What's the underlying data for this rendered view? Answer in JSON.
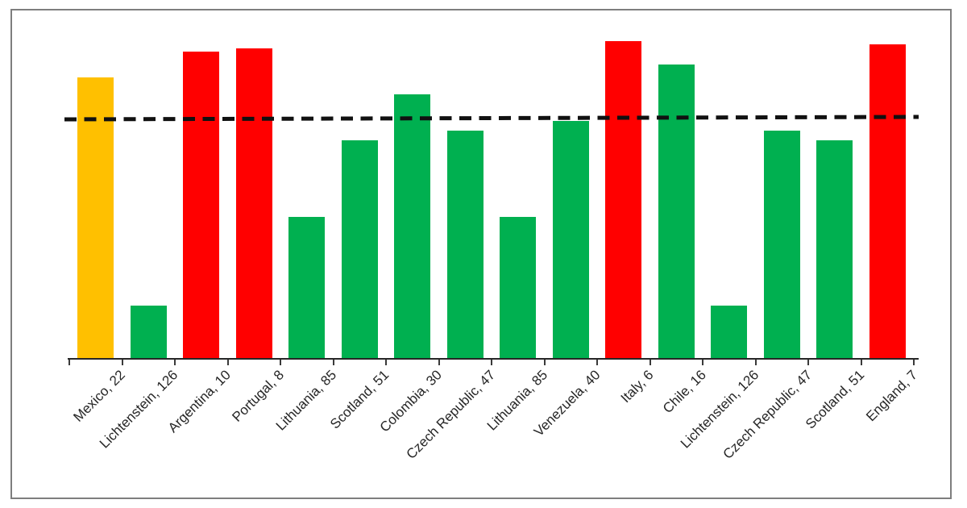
{
  "chart_data": {
    "type": "bar",
    "title": "",
    "xlabel": "",
    "ylabel": "",
    "ylim": [
      0,
      100
    ],
    "y_axis_visible": false,
    "grid": false,
    "legend": "none",
    "x_tick_rotation": 45,
    "categories": [
      "Mexico, 22",
      "Lichtenstein, 126",
      "Argentina, 10",
      "Portugal, 8",
      "Lithuania, 85",
      "Scotland, 51",
      "Colombia, 30",
      "Czech Republic, 47",
      "Lithuania, 85",
      "Venezuela, 40",
      "Italy, 6",
      "Chile, 16",
      "Lichtenstein, 126",
      "Czech Republic, 47",
      "Scotland, 51",
      "England, 7"
    ],
    "values": [
      85,
      16,
      93,
      94,
      43,
      66,
      80,
      69,
      43,
      72,
      96,
      89,
      16,
      69,
      66,
      95
    ],
    "bar_colors": [
      "#FFC000",
      "#00B050",
      "#FF0000",
      "#FF0000",
      "#00B050",
      "#00B050",
      "#00B050",
      "#00B050",
      "#00B050",
      "#00B050",
      "#FF0000",
      "#00B050",
      "#00B050",
      "#00B050",
      "#00B050",
      "#FF0000"
    ],
    "points": [
      {
        "label": "Mexico, 22",
        "country": "Mexico",
        "rank": 22,
        "value": 85,
        "color": "#FFC000",
        "color_name": "yellow"
      },
      {
        "label": "Lichtenstein, 126",
        "country": "Lichtenstein",
        "rank": 126,
        "value": 16,
        "color": "#00B050",
        "color_name": "green"
      },
      {
        "label": "Argentina, 10",
        "country": "Argentina",
        "rank": 10,
        "value": 93,
        "color": "#FF0000",
        "color_name": "red"
      },
      {
        "label": "Portugal, 8",
        "country": "Portugal",
        "rank": 8,
        "value": 94,
        "color": "#FF0000",
        "color_name": "red"
      },
      {
        "label": "Lithuania, 85",
        "country": "Lithuania",
        "rank": 85,
        "value": 43,
        "color": "#00B050",
        "color_name": "green"
      },
      {
        "label": "Scotland, 51",
        "country": "Scotland",
        "rank": 51,
        "value": 66,
        "color": "#00B050",
        "color_name": "green"
      },
      {
        "label": "Colombia, 30",
        "country": "Colombia",
        "rank": 30,
        "value": 80,
        "color": "#00B050",
        "color_name": "green"
      },
      {
        "label": "Czech Republic, 47",
        "country": "Czech Republic",
        "rank": 47,
        "value": 69,
        "color": "#00B050",
        "color_name": "green"
      },
      {
        "label": "Lithuania, 85",
        "country": "Lithuania",
        "rank": 85,
        "value": 43,
        "color": "#00B050",
        "color_name": "green"
      },
      {
        "label": "Venezuela, 40",
        "country": "Venezuela",
        "rank": 40,
        "value": 72,
        "color": "#00B050",
        "color_name": "green"
      },
      {
        "label": "Italy, 6",
        "country": "Italy",
        "rank": 6,
        "value": 96,
        "color": "#FF0000",
        "color_name": "red"
      },
      {
        "label": "Chile, 16",
        "country": "Chile",
        "rank": 16,
        "value": 89,
        "color": "#00B050",
        "color_name": "green"
      },
      {
        "label": "Lichtenstein, 126",
        "country": "Lichtenstein",
        "rank": 126,
        "value": 16,
        "color": "#00B050",
        "color_name": "green"
      },
      {
        "label": "Czech Republic, 47",
        "country": "Czech Republic",
        "rank": 47,
        "value": 69,
        "color": "#00B050",
        "color_name": "green"
      },
      {
        "label": "Scotland, 51",
        "country": "Scotland",
        "rank": 51,
        "value": 66,
        "color": "#00B050",
        "color_name": "green"
      },
      {
        "label": "England, 7",
        "country": "England",
        "rank": 7,
        "value": 95,
        "color": "#FF0000",
        "color_name": "red"
      }
    ],
    "threshold_line": {
      "value": 73,
      "style": "dashed",
      "color": "#111111",
      "orientation": "horizontal"
    }
  },
  "frame": {
    "border_color": "#7E7E7E",
    "background": "#FFFFFF",
    "axis_color": "#262626",
    "label_color": "#262626"
  }
}
